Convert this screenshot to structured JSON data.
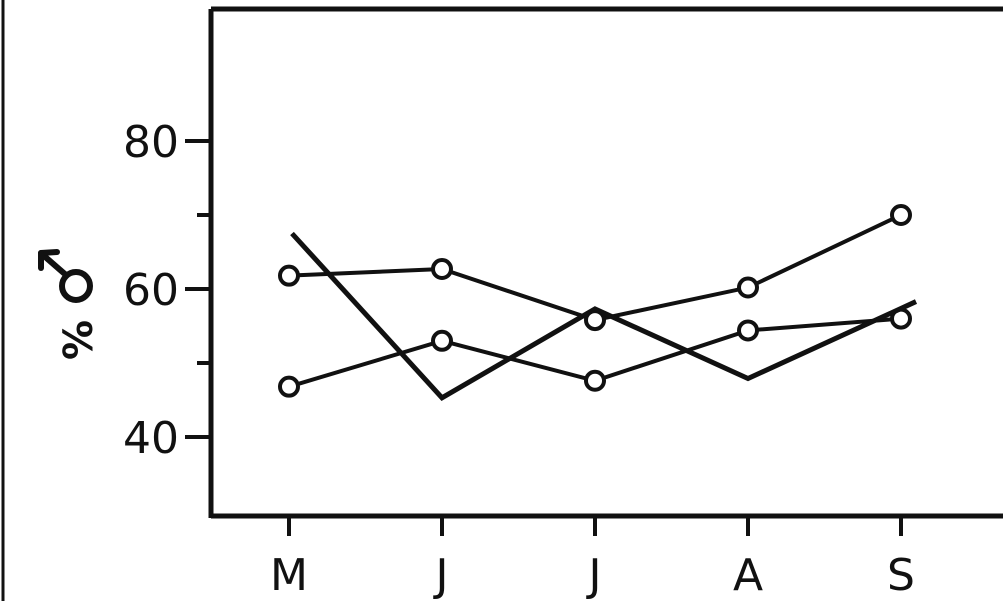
{
  "chart_data": {
    "type": "line",
    "title": "",
    "xlabel": "",
    "ylabel": "%",
    "ylabel_symbol": "male-symbol-icon",
    "categories": [
      "M",
      "J",
      "J",
      "A",
      "S"
    ],
    "yticks": [
      40,
      60,
      80
    ],
    "yticks_minor": [
      50,
      70
    ],
    "ylim": [
      30,
      98
    ],
    "grid": false,
    "legend": "none",
    "series": [
      {
        "marker": "circle",
        "values": [
          61.8,
          62.7,
          55.8,
          60.2,
          70.0
        ]
      },
      {
        "marker": "circle",
        "values": [
          46.8,
          53.0,
          47.6,
          54.4,
          56.0
        ]
      },
      {
        "marker": "none",
        "values": [
          67.5,
          45.3,
          57.3,
          47.9,
          58.3
        ]
      }
    ],
    "colors": {
      "line": "#111111",
      "background": "#ffffff",
      "frame": "#111111"
    }
  }
}
